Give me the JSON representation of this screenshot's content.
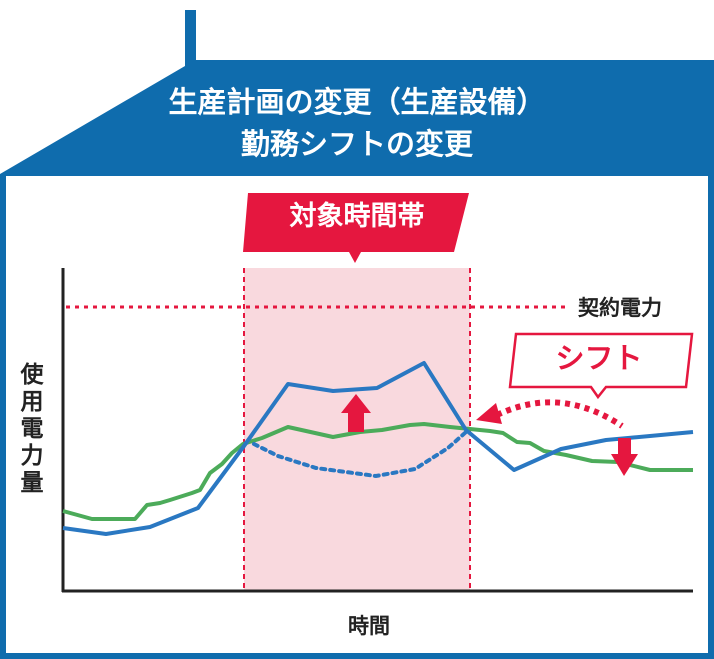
{
  "header": {
    "line1": "生産計画の変更（生産設備）",
    "line2": "勤務シフトの変更"
  },
  "target_period_label": "対象時間帯",
  "contract_power_label": "契約電力",
  "shift_label": "シフト",
  "axis": {
    "ylabel": [
      "使",
      "用",
      "電",
      "力",
      "量"
    ],
    "xlabel": "時間"
  },
  "colors": {
    "frame_blue": "#0f6cad",
    "accent_red": "#e5173f",
    "highlight_pink": "#f9d9de",
    "line_blue": "#2a78c2",
    "line_green": "#4cab5a"
  },
  "chart_data": {
    "type": "line",
    "title": "",
    "xlabel": "時間",
    "ylabel": "使用電力量",
    "series": [
      {
        "style": "solid",
        "color": "#2a78c2",
        "description": "after-change"
      },
      {
        "style": "dotted",
        "color": "#2a78c2",
        "description": "before-change"
      },
      {
        "style": "solid",
        "color": "#4cab5a",
        "description": "other"
      }
    ],
    "reference_line": {
      "label": "契約電力",
      "style": "dotted",
      "color": "#e5173f"
    }
  }
}
